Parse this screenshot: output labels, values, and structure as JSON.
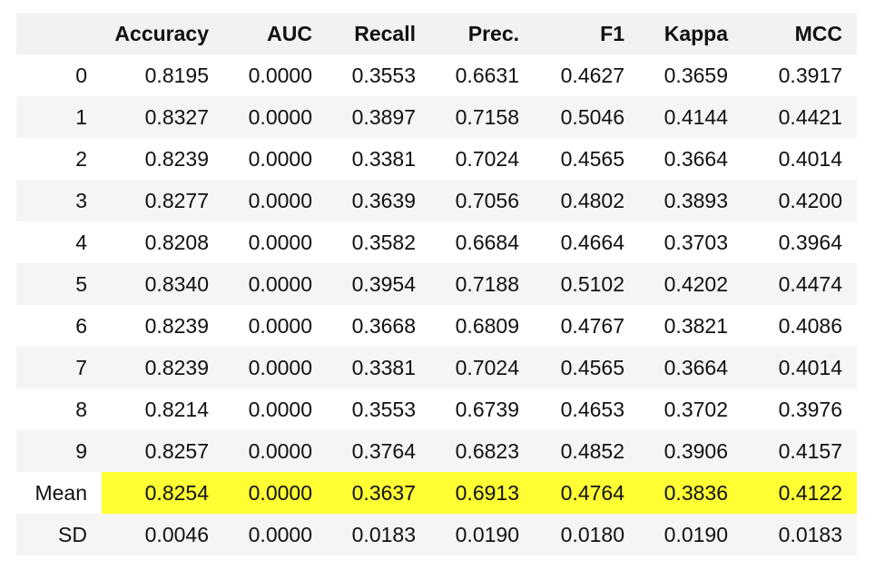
{
  "table": {
    "columns": [
      "",
      "Accuracy",
      "AUC",
      "Recall",
      "Prec.",
      "F1",
      "Kappa",
      "MCC"
    ],
    "rows": [
      {
        "index": "0",
        "values": [
          "0.8195",
          "0.0000",
          "0.3553",
          "0.6631",
          "0.4627",
          "0.3659",
          "0.3917"
        ]
      },
      {
        "index": "1",
        "values": [
          "0.8327",
          "0.0000",
          "0.3897",
          "0.7158",
          "0.5046",
          "0.4144",
          "0.4421"
        ]
      },
      {
        "index": "2",
        "values": [
          "0.8239",
          "0.0000",
          "0.3381",
          "0.7024",
          "0.4565",
          "0.3664",
          "0.4014"
        ]
      },
      {
        "index": "3",
        "values": [
          "0.8277",
          "0.0000",
          "0.3639",
          "0.7056",
          "0.4802",
          "0.3893",
          "0.4200"
        ]
      },
      {
        "index": "4",
        "values": [
          "0.8208",
          "0.0000",
          "0.3582",
          "0.6684",
          "0.4664",
          "0.3703",
          "0.3964"
        ]
      },
      {
        "index": "5",
        "values": [
          "0.8340",
          "0.0000",
          "0.3954",
          "0.7188",
          "0.5102",
          "0.4202",
          "0.4474"
        ]
      },
      {
        "index": "6",
        "values": [
          "0.8239",
          "0.0000",
          "0.3668",
          "0.6809",
          "0.4767",
          "0.3821",
          "0.4086"
        ]
      },
      {
        "index": "7",
        "values": [
          "0.8239",
          "0.0000",
          "0.3381",
          "0.7024",
          "0.4565",
          "0.3664",
          "0.4014"
        ]
      },
      {
        "index": "8",
        "values": [
          "0.8214",
          "0.0000",
          "0.3553",
          "0.6739",
          "0.4653",
          "0.3702",
          "0.3976"
        ]
      },
      {
        "index": "9",
        "values": [
          "0.8257",
          "0.0000",
          "0.3764",
          "0.6823",
          "0.4852",
          "0.3906",
          "0.4157"
        ]
      },
      {
        "index": "Mean",
        "values": [
          "0.8254",
          "0.0000",
          "0.3637",
          "0.6913",
          "0.4764",
          "0.3836",
          "0.4122"
        ],
        "highlight": true
      },
      {
        "index": "SD",
        "values": [
          "0.0046",
          "0.0000",
          "0.0183",
          "0.0190",
          "0.0180",
          "0.0190",
          "0.0183"
        ]
      }
    ]
  },
  "colors": {
    "header_bg": "#f2f2f2",
    "stripe_bg": "#f5f5f5",
    "highlight": "#ffff33"
  }
}
